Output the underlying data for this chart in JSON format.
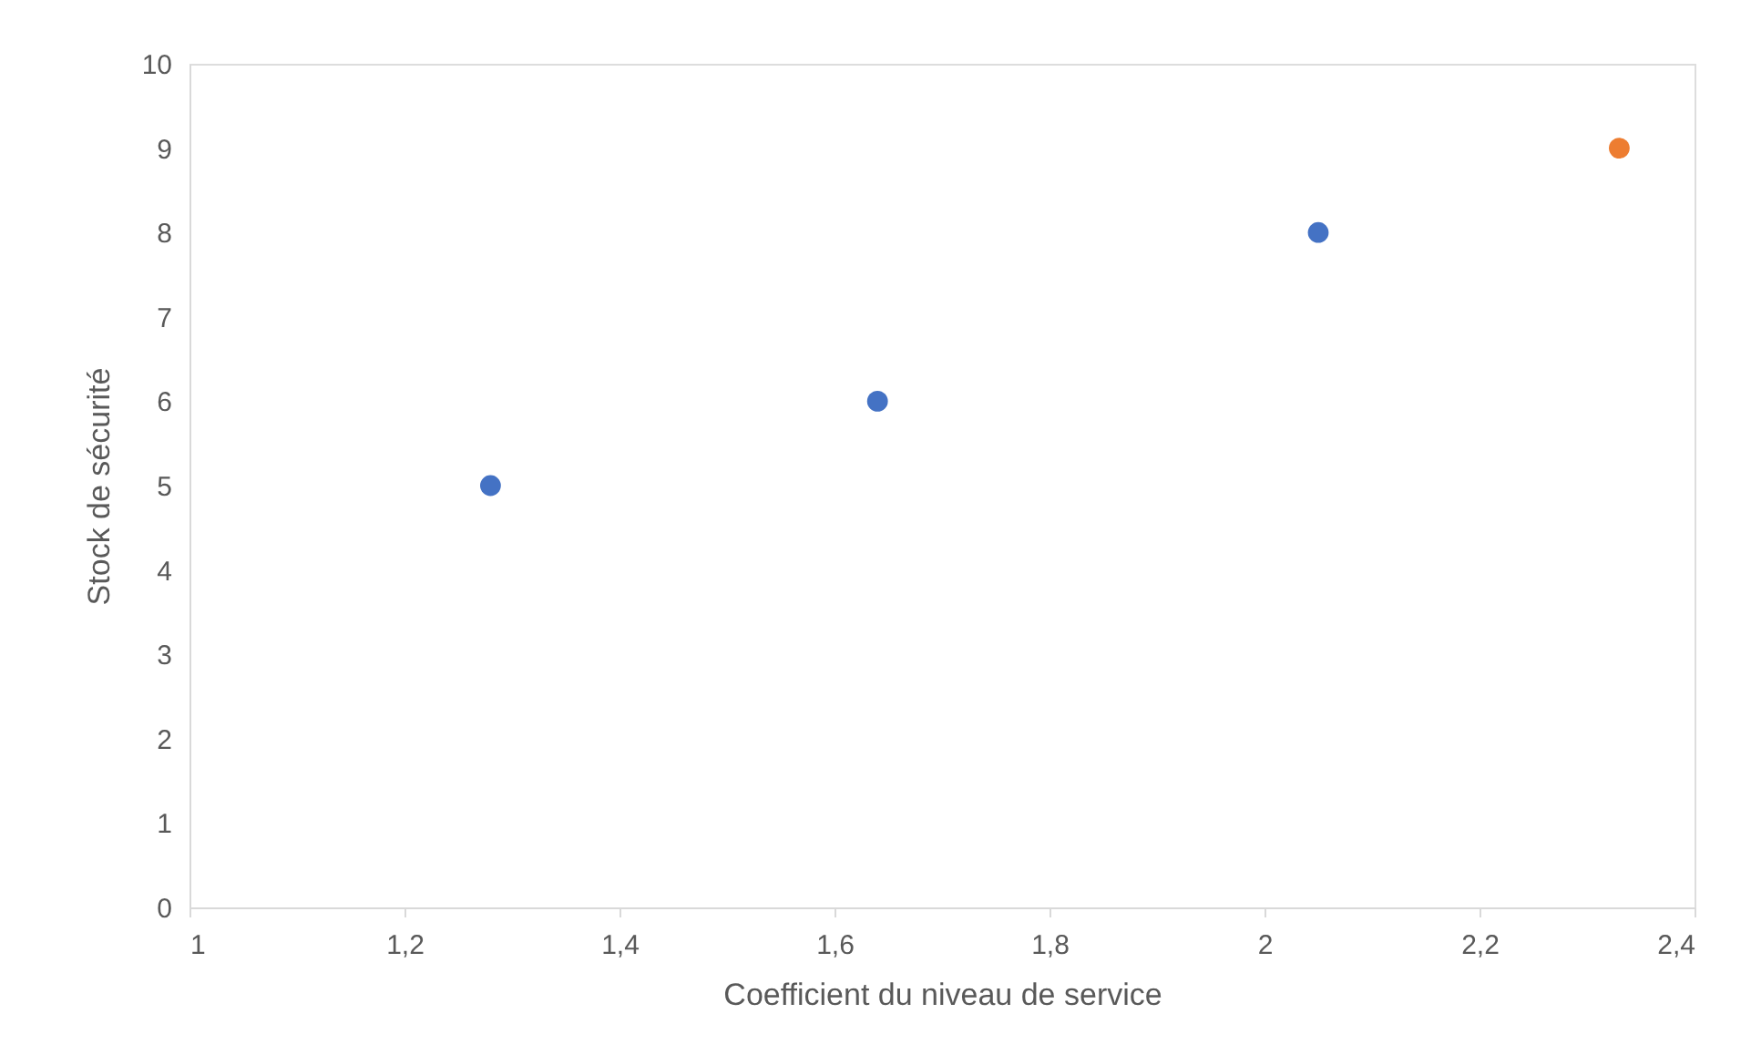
{
  "chart_data": {
    "type": "scatter",
    "xlabel": "Coefficient du niveau de service",
    "ylabel": "Stock de sécurité",
    "series": [
      {
        "color": "#4472c4",
        "x": [
          1.28,
          1.64,
          2.05
        ],
        "values": [
          5,
          6,
          8
        ]
      },
      {
        "color": "#ed7d31",
        "x": [
          2.33
        ],
        "values": [
          9
        ]
      }
    ],
    "xlim": [
      1,
      2.4
    ],
    "xticks": [
      1,
      {
        "value": 1.2,
        "label": "1,2"
      },
      {
        "value": 1.4,
        "label": "1,4"
      },
      {
        "value": 1.6,
        "label": "1,6"
      },
      {
        "value": 1.8,
        "label": "1,8"
      },
      2,
      {
        "value": 2.2,
        "label": "2,2"
      },
      {
        "value": 2.4,
        "label": "2,4"
      }
    ],
    "ylim": [
      0,
      10
    ],
    "yticks": [
      0,
      1,
      2,
      3,
      4,
      5,
      6,
      7,
      8,
      9,
      10
    ],
    "grid": false
  }
}
